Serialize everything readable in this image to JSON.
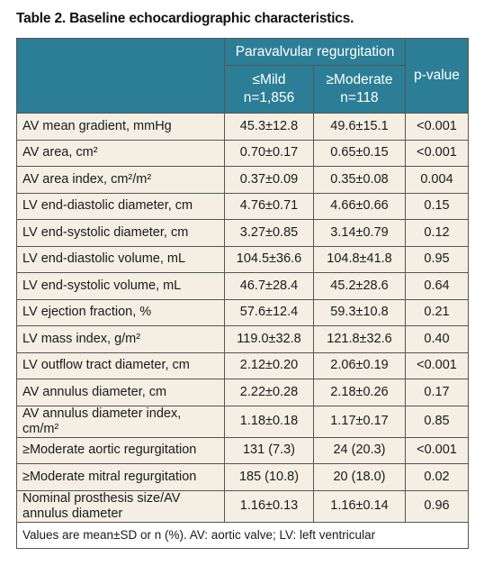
{
  "header": {
    "title": "Table 2. Baseline echocardiographic characteristics."
  },
  "table": {
    "group_header": "Paravalvular regurgitation",
    "columns": [
      {
        "label": "≤Mild",
        "n": "n=1,856"
      },
      {
        "label": "≥Moderate",
        "n": "n=118"
      }
    ],
    "pvalue_header": "p-value",
    "rows": [
      [
        "AV mean gradient, mmHg",
        "45.3±12.8",
        "49.6±15.1",
        "<0.001"
      ],
      [
        "AV area, cm²",
        "0.70±0.17",
        "0.65±0.15",
        "<0.001"
      ],
      [
        "AV area index, cm²/m²",
        "0.37±0.09",
        "0.35±0.08",
        "0.004"
      ],
      [
        "LV end-diastolic diameter, cm",
        "4.76±0.71",
        "4.66±0.66",
        "0.15"
      ],
      [
        "LV end-systolic diameter, cm",
        "3.27±0.85",
        "3.14±0.79",
        "0.12"
      ],
      [
        "LV end-diastolic volume, mL",
        "104.5±36.6",
        "104.8±41.8",
        "0.95"
      ],
      [
        "LV end-systolic volume, mL",
        "46.7±28.4",
        "45.2±28.6",
        "0.64"
      ],
      [
        "LV ejection fraction, %",
        "57.6±12.4",
        "59.3±10.8",
        "0.21"
      ],
      [
        "LV mass index, g/m²",
        "119.0±32.8",
        "121.8±32.6",
        "0.40"
      ],
      [
        "LV outflow tract diameter, cm",
        "2.12±0.20",
        "2.06±0.19",
        "<0.001"
      ],
      [
        "AV annulus diameter, cm",
        "2.22±0.28",
        "2.18±0.26",
        "0.17"
      ],
      [
        "AV annulus diameter index, cm/m²",
        "1.18±0.18",
        "1.17±0.17",
        "0.85"
      ],
      [
        "≥Moderate aortic regurgitation",
        "131 (7.3)",
        "24 (20.3)",
        "<0.001"
      ],
      [
        "≥Moderate mitral regurgitation",
        "185 (10.8)",
        "20 (18.0)",
        "0.02"
      ],
      [
        "Nominal prosthesis size/AV annulus diameter",
        "1.16±0.13",
        "1.16±0.14",
        "0.96"
      ]
    ],
    "footnote": "Values are mean±SD or n (%). AV: aortic valve; LV: left ventricular"
  }
}
